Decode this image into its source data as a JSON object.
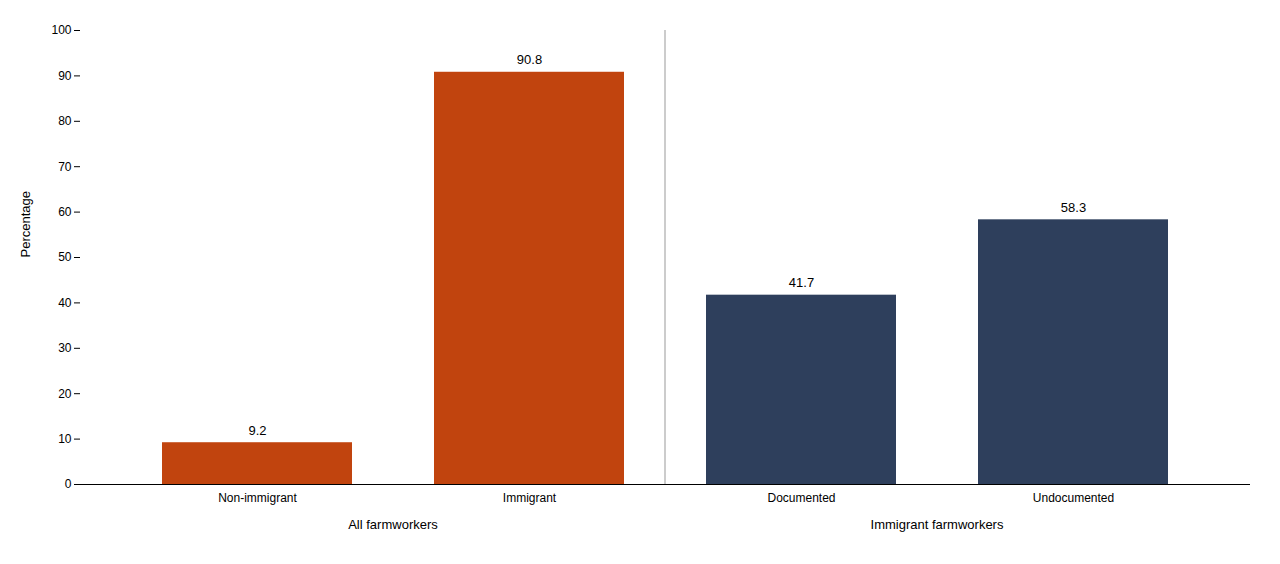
{
  "chart_data": {
    "type": "bar",
    "categories": [
      "Non-immigrant",
      "Immigrant",
      "Documented",
      "Undocumented"
    ],
    "values": [
      9.2,
      90.8,
      41.7,
      58.3
    ],
    "colors": [
      "#c1440e",
      "#c1440e",
      "#2e3f5c",
      "#2e3f5c"
    ],
    "groups": [
      {
        "name": "All farmworkers",
        "categories": [
          "Non-immigrant",
          "Immigrant"
        ]
      },
      {
        "name": "Immigrant farmworkers",
        "categories": [
          "Documented",
          "Undocumented"
        ]
      }
    ],
    "ylabel": "Percentage",
    "ylim": [
      0,
      100
    ],
    "yticks": [
      0,
      10,
      20,
      30,
      40,
      50,
      60,
      70,
      80,
      90,
      100
    ],
    "grid": false,
    "data_labels": true
  }
}
